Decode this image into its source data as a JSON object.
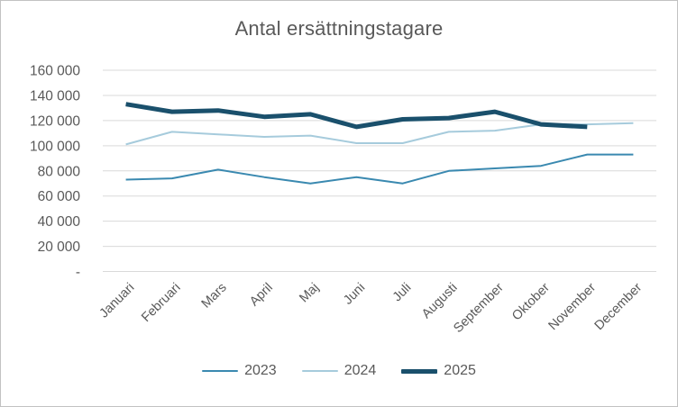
{
  "window": {
    "background_color": "#ffffff",
    "border_color": "#c2c2c2",
    "text_color": "#595959",
    "gridline_color": "#d9d9d9"
  },
  "chart_data": {
    "type": "line",
    "title": "Antal ersättningstagare",
    "categories": [
      "Januari",
      "Februari",
      "Mars",
      "April",
      "Maj",
      "Juni",
      "Juli",
      "Augusti",
      "September",
      "Oktober",
      "November",
      "December"
    ],
    "series": [
      {
        "name": "2023",
        "color": "#3a89b0",
        "stroke_width": 2,
        "values": [
          73000,
          74000,
          81000,
          75000,
          70000,
          75000,
          70000,
          80000,
          82000,
          84000,
          93000,
          93000
        ]
      },
      {
        "name": "2024",
        "color": "#a6cbdc",
        "stroke_width": 2,
        "values": [
          101000,
          111000,
          109000,
          107000,
          108000,
          102000,
          102000,
          111000,
          112000,
          117000,
          117000,
          118000
        ]
      },
      {
        "name": "2025",
        "color": "#1a506c",
        "stroke_width": 5,
        "values": [
          133000,
          127000,
          128000,
          123000,
          125000,
          115000,
          121000,
          122000,
          127000,
          117000,
          115000,
          null
        ]
      }
    ],
    "y_axis": {
      "min": 0,
      "max": 160000,
      "tick_step": 20000,
      "ticks": [
        {
          "value": 160000,
          "label": "160 000"
        },
        {
          "value": 140000,
          "label": "140 000"
        },
        {
          "value": 120000,
          "label": "120 000"
        },
        {
          "value": 100000,
          "label": "100 000"
        },
        {
          "value": 80000,
          "label": "80 000"
        },
        {
          "value": 60000,
          "label": "60 000"
        },
        {
          "value": 40000,
          "label": "40 000"
        },
        {
          "value": 20000,
          "label": "20 000"
        },
        {
          "value": 0,
          "label": "-"
        }
      ]
    },
    "grid": true,
    "legend_position": "bottom",
    "x_label_rotation_deg": -45
  }
}
